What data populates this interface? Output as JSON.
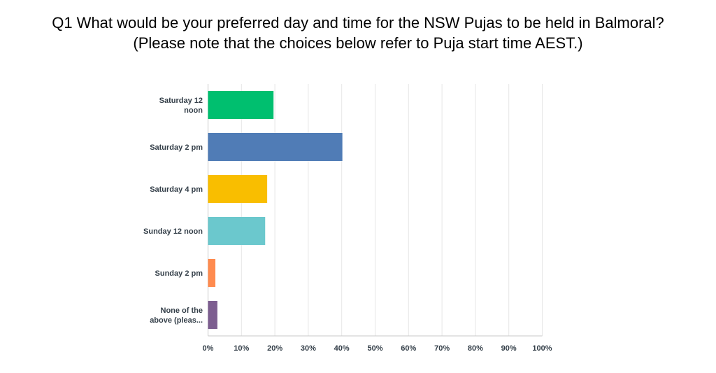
{
  "chart_data": {
    "type": "bar",
    "orientation": "horizontal",
    "title": [
      "Q1 What would be your preferred day and time for the NSW Pujas to be held in Balmoral?",
      "(Please note that the choices below refer to Puja start time AEST.)"
    ],
    "categories": [
      [
        "Saturday 12",
        "noon"
      ],
      [
        "Saturday 2 pm"
      ],
      [
        "Saturday 4 pm"
      ],
      [
        "Sunday 12 noon"
      ],
      [
        "Sunday 2 pm"
      ],
      [
        "None of the",
        "above (pleas..."
      ]
    ],
    "values": [
      19.6,
      40.2,
      17.7,
      17.1,
      2.2,
      2.8
    ],
    "colors": [
      "#00bf6f",
      "#507cb6",
      "#f9be00",
      "#6bc8cd",
      "#ff8b4f",
      "#7d5e90"
    ],
    "xlim": [
      0,
      100
    ],
    "xticks": [
      "0%",
      "10%",
      "20%",
      "30%",
      "40%",
      "50%",
      "60%",
      "70%",
      "80%",
      "90%",
      "100%"
    ],
    "grid": true,
    "xlabel": "",
    "ylabel": ""
  }
}
